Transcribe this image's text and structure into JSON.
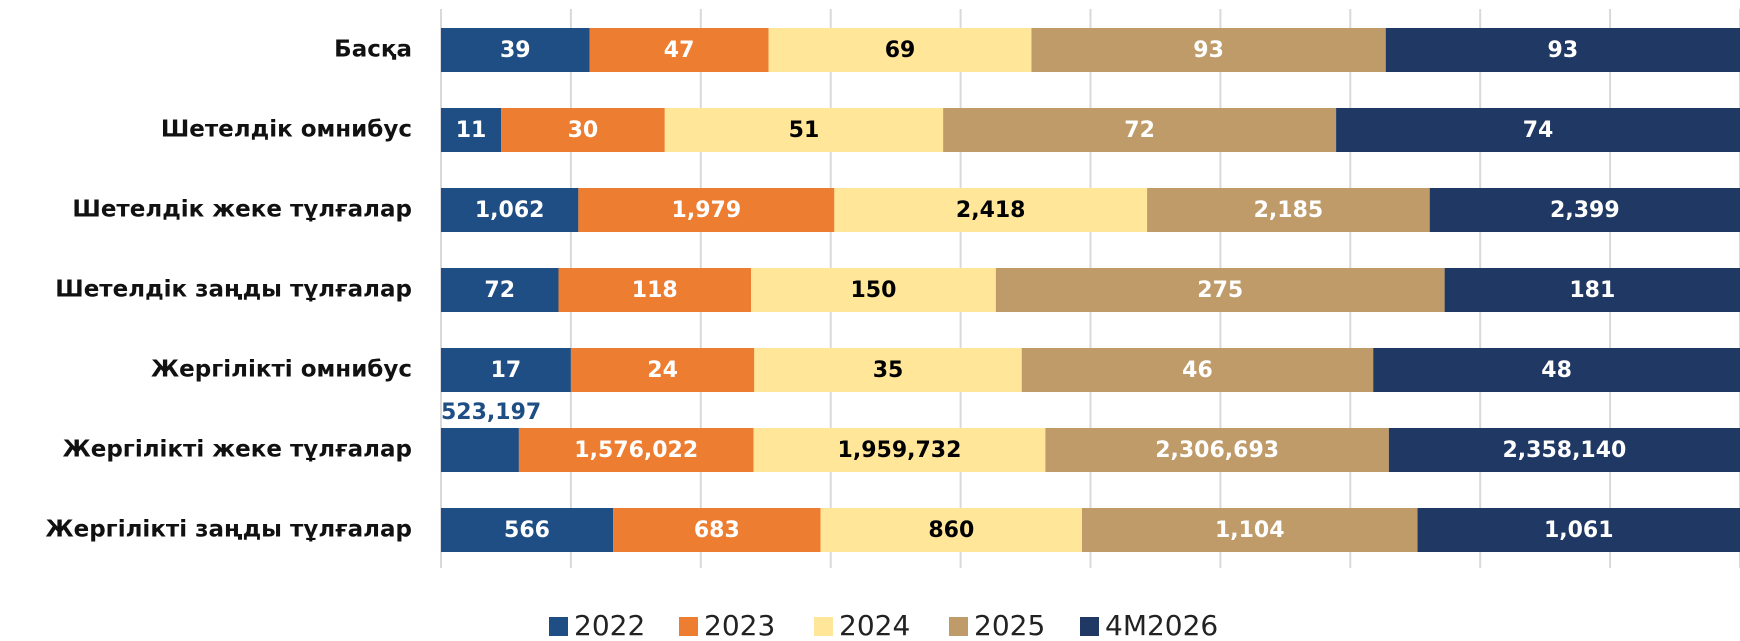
{
  "chart_data": {
    "type": "stacked100-barh",
    "categories": [
      "Басқа",
      "Шетелдік омнибус",
      "Шетелдік жеке тұлғалар",
      "Шетелдік заңды тұлғалар",
      "Жергілікті омнибус",
      "Жергілікті жеке тұлғалар",
      "Жергілікті заңды тұлғалар"
    ],
    "series": [
      {
        "name": "2022",
        "color": "#1f4e84",
        "label_color": "#ffffff",
        "values": [
          39,
          11,
          1062,
          72,
          17,
          523197,
          566
        ],
        "value_labels": [
          "39",
          "11",
          "1,062",
          "72",
          "17",
          "523,197",
          "566"
        ]
      },
      {
        "name": "2023",
        "color": "#ed7d31",
        "label_color": "#ffffff",
        "values": [
          47,
          30,
          1979,
          118,
          24,
          1576022,
          683
        ],
        "value_labels": [
          "47",
          "30",
          "1,979",
          "118",
          "24",
          "1,576,022",
          "683"
        ]
      },
      {
        "name": "2024",
        "color": "#ffe699",
        "label_color": "#000000",
        "values": [
          69,
          51,
          2418,
          150,
          35,
          1959732,
          860
        ],
        "value_labels": [
          "69",
          "51",
          "2,418",
          "150",
          "35",
          "1,959,732",
          "860"
        ]
      },
      {
        "name": "2025",
        "color": "#bf9b6a",
        "label_color": "#ffffff",
        "values": [
          93,
          72,
          2185,
          275,
          46,
          2306693,
          1104
        ],
        "value_labels": [
          "93",
          "72",
          "2,185",
          "275",
          "46",
          "2,306,693",
          "1,104"
        ]
      },
      {
        "name": "4M2026",
        "color": "#1f3864",
        "label_color": "#ffffff",
        "values": [
          93,
          74,
          2399,
          181,
          48,
          2358140,
          1061
        ],
        "value_labels": [
          "93",
          "74",
          "2,399",
          "181",
          "48",
          "2,358,140",
          "1,061"
        ]
      }
    ],
    "xlim": [
      0,
      100
    ],
    "xticks": [
      0,
      10,
      20,
      30,
      40,
      50,
      60,
      70,
      80,
      90,
      100
    ],
    "grid": true,
    "legend": "bottom"
  }
}
